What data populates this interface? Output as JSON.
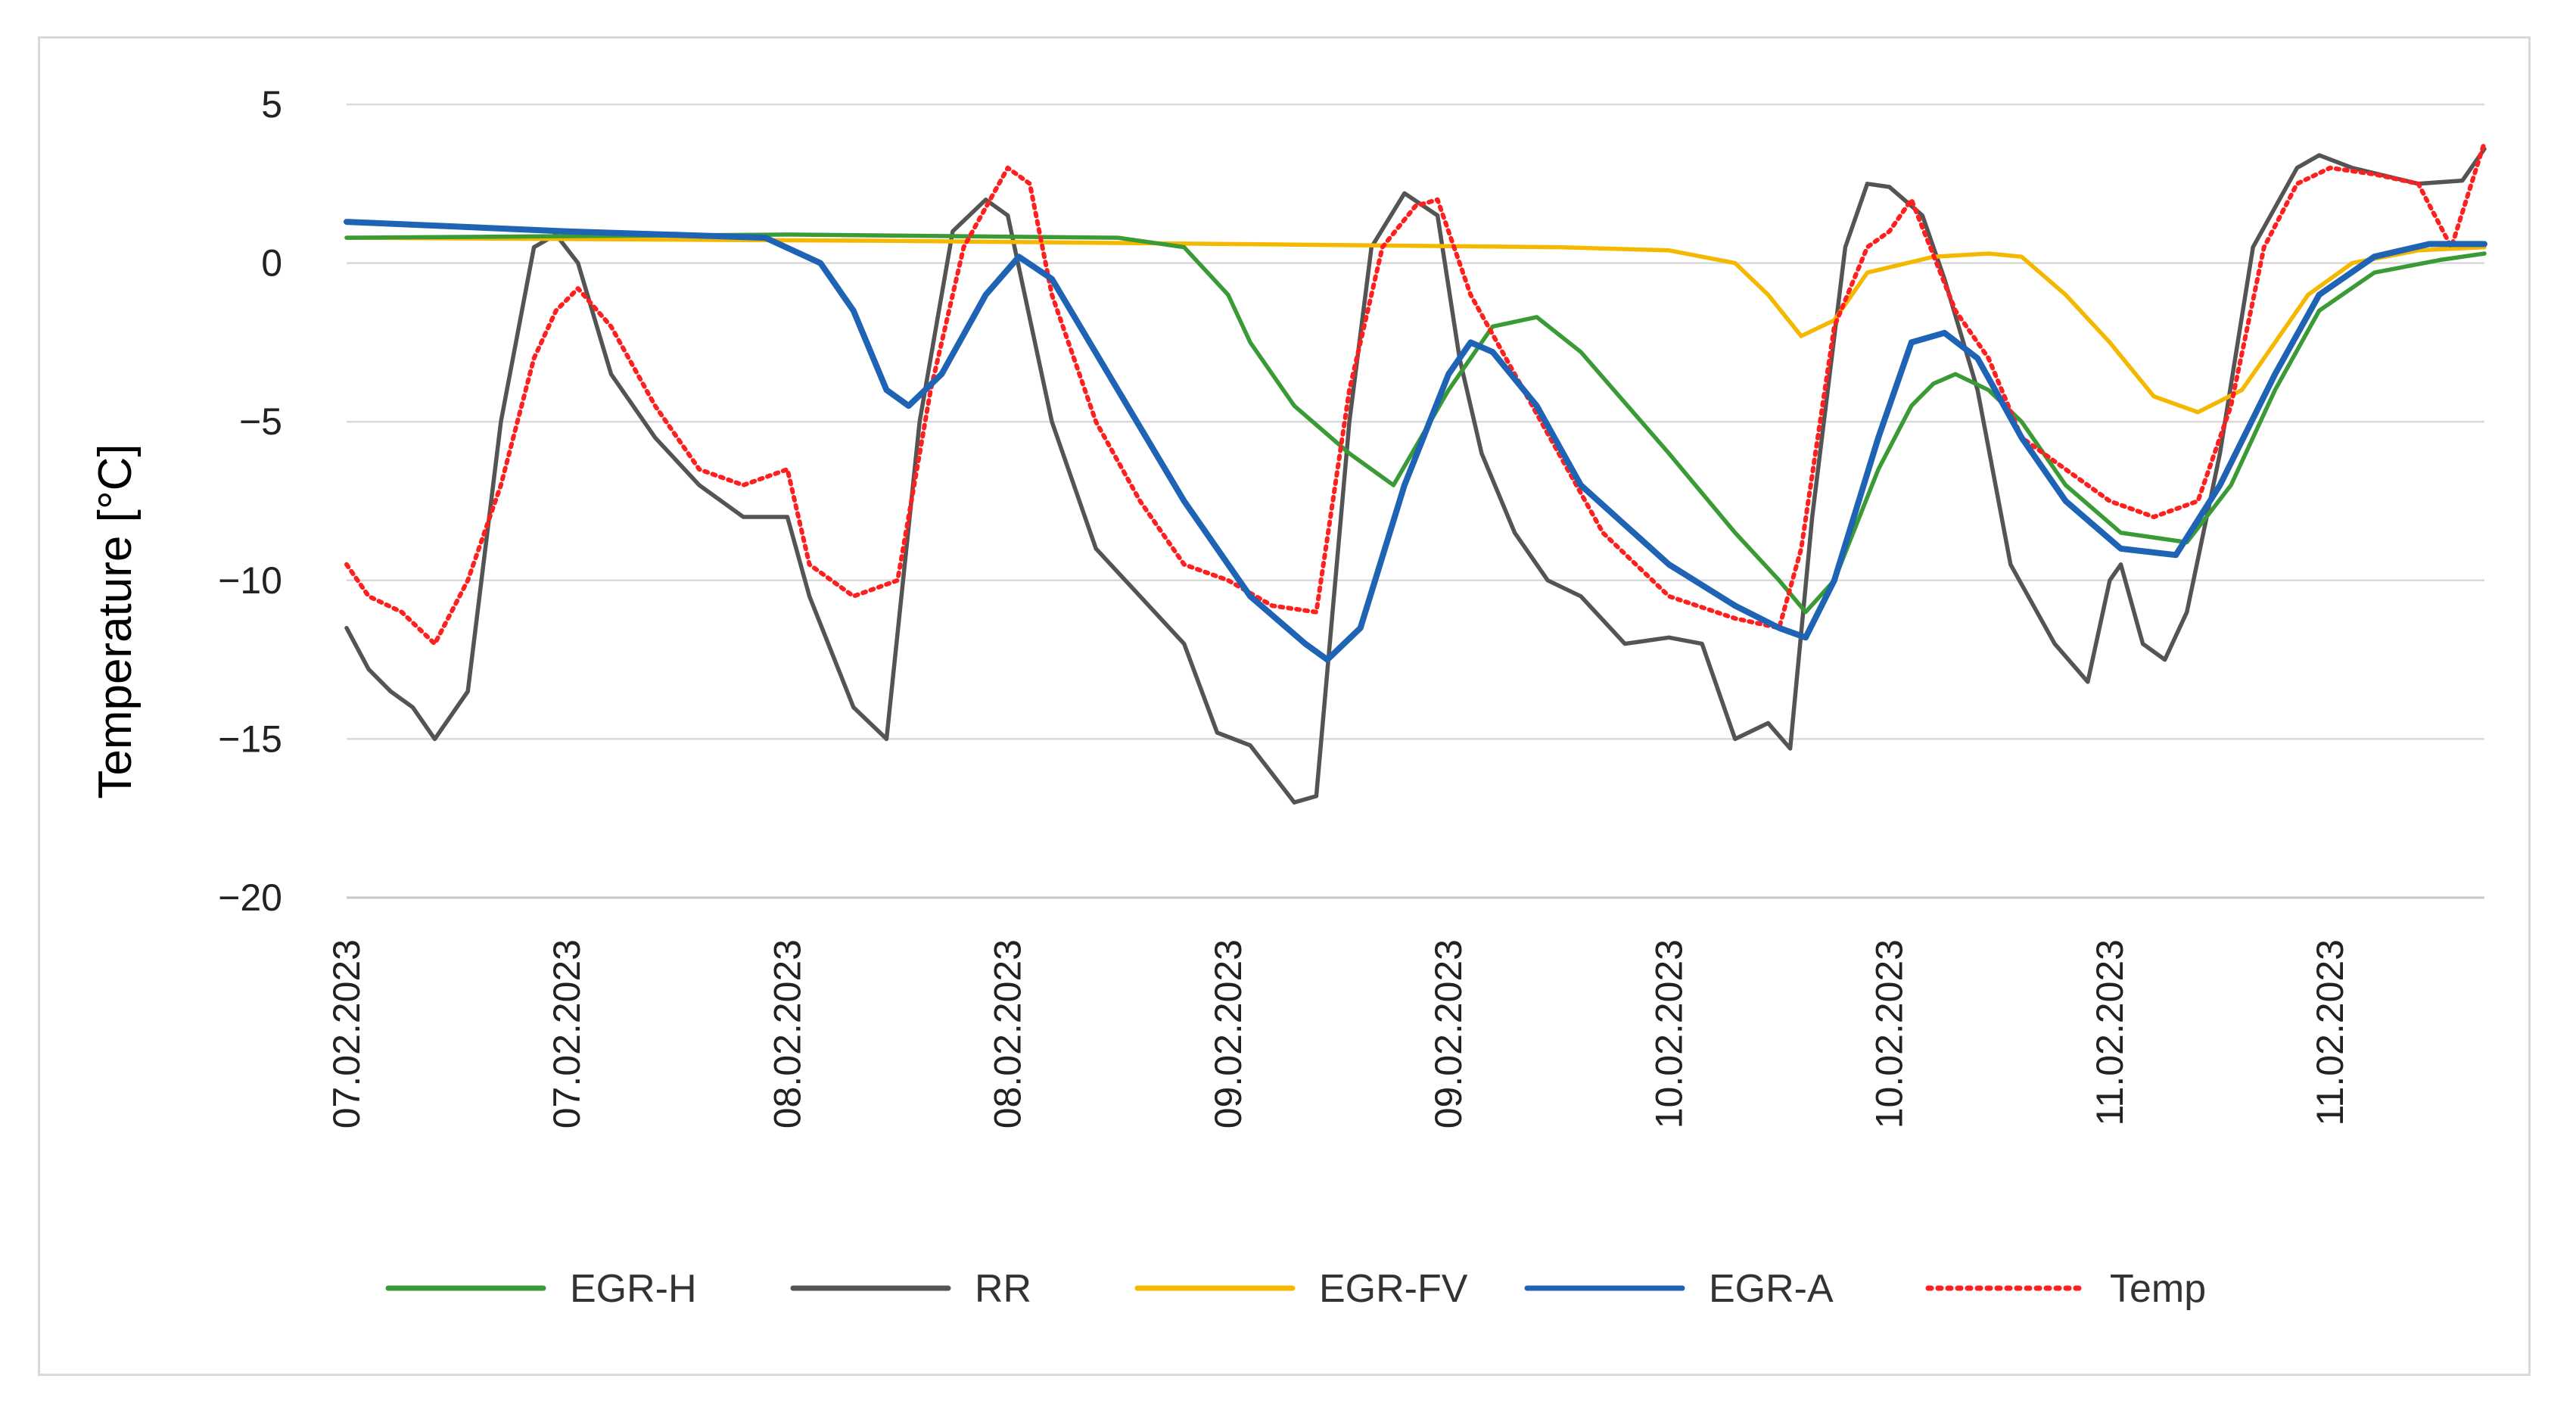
{
  "chart_data": {
    "type": "line",
    "title": "",
    "xlabel": "",
    "ylabel": "Temperature [°C]",
    "ylim": [
      -20,
      5
    ],
    "yticks": [
      5,
      0,
      -5,
      -10,
      -15,
      -20
    ],
    "ytick_labels": [
      "5",
      "0",
      "−5",
      "−10",
      "−15",
      "−20"
    ],
    "xlim": [
      0,
      9.7
    ],
    "x_unit": "half-day intervals from 07.02.2023 00:00",
    "xtick_labels": [
      "07.02.2023",
      "07.02.2023",
      "08.02.2023",
      "08.02.2023",
      "09.02.2023",
      "09.02.2023",
      "10.02.2023",
      "10.02.2023",
      "11.02.2023",
      "11.02.2023"
    ],
    "grid": "horizontal",
    "legend_position": "bottom",
    "series": [
      {
        "name": "EGR-H",
        "color": "#3a9a35",
        "dash": "solid",
        "x": [
          0,
          2.0,
          3.5,
          3.8,
          4.0,
          4.1,
          4.3,
          4.55,
          4.75,
          5.0,
          5.2,
          5.4,
          5.6,
          6.0,
          6.3,
          6.5,
          6.62,
          6.75,
          6.95,
          7.1,
          7.2,
          7.3,
          7.45,
          7.6,
          7.8,
          8.05,
          8.35,
          8.55,
          8.75,
          8.95,
          9.2,
          9.5,
          9.7
        ],
        "y": [
          0.8,
          0.9,
          0.8,
          0.5,
          -1.0,
          -2.5,
          -4.5,
          -6.0,
          -7.0,
          -4.0,
          -2.0,
          -1.7,
          -2.8,
          -6.0,
          -8.5,
          -10.0,
          -11.0,
          -10.0,
          -6.5,
          -4.5,
          -3.8,
          -3.5,
          -4.0,
          -5.0,
          -7.0,
          -8.5,
          -8.8,
          -7.0,
          -4.0,
          -1.5,
          -0.3,
          0.1,
          0.3
        ]
      },
      {
        "name": "RR",
        "color": "#545454",
        "dash": "solid",
        "x": [
          0,
          0.1,
          0.2,
          0.3,
          0.4,
          0.55,
          0.7,
          0.85,
          0.95,
          1.05,
          1.2,
          1.4,
          1.6,
          1.8,
          2.0,
          2.1,
          2.3,
          2.45,
          2.6,
          2.75,
          2.9,
          3.0,
          3.2,
          3.4,
          3.6,
          3.8,
          3.95,
          4.1,
          4.3,
          4.4,
          4.55,
          4.65,
          4.8,
          4.95,
          5.05,
          5.15,
          5.3,
          5.45,
          5.6,
          5.8,
          6.0,
          6.15,
          6.3,
          6.45,
          6.55,
          6.65,
          6.8,
          6.9,
          7.0,
          7.15,
          7.25,
          7.4,
          7.55,
          7.75,
          7.9,
          8.0,
          8.05,
          8.15,
          8.25,
          8.35,
          8.5,
          8.65,
          8.85,
          8.95,
          9.1,
          9.4,
          9.6,
          9.7
        ],
        "y": [
          -11.5,
          -12.8,
          -13.5,
          -14.0,
          -15.0,
          -13.5,
          -5.0,
          0.5,
          0.9,
          0.0,
          -3.5,
          -5.5,
          -7.0,
          -8.0,
          -8.0,
          -10.5,
          -14.0,
          -15.0,
          -5.0,
          1.0,
          2.0,
          1.5,
          -5.0,
          -9.0,
          -10.5,
          -12.0,
          -14.8,
          -15.2,
          -17.0,
          -16.8,
          -5.0,
          0.5,
          2.2,
          1.5,
          -3.0,
          -6.0,
          -8.5,
          -10.0,
          -10.5,
          -12.0,
          -11.8,
          -12.0,
          -15.0,
          -14.5,
          -15.3,
          -8.0,
          0.5,
          2.5,
          2.4,
          1.5,
          -0.5,
          -4.0,
          -9.5,
          -12.0,
          -13.2,
          -10.0,
          -9.5,
          -12.0,
          -12.5,
          -11.0,
          -6.0,
          0.5,
          3.0,
          3.4,
          3.0,
          2.5,
          2.6,
          3.6
        ]
      },
      {
        "name": "EGR-FV",
        "color": "#f5b800",
        "dash": "solid",
        "x": [
          0,
          2.5,
          4.0,
          5.5,
          6.0,
          6.3,
          6.45,
          6.6,
          6.75,
          6.9,
          7.2,
          7.45,
          7.6,
          7.8,
          8.0,
          8.2,
          8.4,
          8.6,
          8.75,
          8.9,
          9.1,
          9.4,
          9.7
        ],
        "y": [
          0.8,
          0.7,
          0.6,
          0.5,
          0.4,
          0.0,
          -1.0,
          -2.3,
          -1.8,
          -0.3,
          0.2,
          0.3,
          0.2,
          -1.0,
          -2.5,
          -4.2,
          -4.7,
          -4.0,
          -2.5,
          -1.0,
          0.0,
          0.4,
          0.5
        ]
      },
      {
        "name": "EGR-A",
        "color": "#1f63b5",
        "dash": "solid",
        "x": [
          0,
          1.0,
          1.9,
          2.15,
          2.3,
          2.45,
          2.55,
          2.7,
          2.9,
          3.05,
          3.2,
          3.5,
          3.8,
          4.1,
          4.35,
          4.45,
          4.6,
          4.8,
          5.0,
          5.1,
          5.2,
          5.4,
          5.6,
          6.0,
          6.3,
          6.5,
          6.62,
          6.75,
          6.95,
          7.1,
          7.25,
          7.4,
          7.6,
          7.8,
          8.05,
          8.3,
          8.5,
          8.75,
          8.95,
          9.2,
          9.45,
          9.7
        ],
        "y": [
          1.3,
          1.0,
          0.8,
          0.0,
          -1.5,
          -4.0,
          -4.5,
          -3.5,
          -1.0,
          0.2,
          -0.5,
          -4.0,
          -7.5,
          -10.5,
          -12.0,
          -12.5,
          -11.5,
          -7.0,
          -3.5,
          -2.5,
          -2.8,
          -4.5,
          -7.0,
          -9.5,
          -10.8,
          -11.5,
          -11.8,
          -10.0,
          -5.5,
          -2.5,
          -2.2,
          -3.0,
          -5.5,
          -7.5,
          -9.0,
          -9.2,
          -7.0,
          -3.5,
          -1.0,
          0.2,
          0.6,
          0.6
        ]
      },
      {
        "name": "Temp",
        "color": "#ff1f1f",
        "dash": "dotted",
        "x": [
          0,
          0.1,
          0.25,
          0.4,
          0.55,
          0.7,
          0.85,
          0.95,
          1.05,
          1.2,
          1.4,
          1.6,
          1.8,
          2.0,
          2.1,
          2.3,
          2.5,
          2.65,
          2.8,
          3.0,
          3.1,
          3.2,
          3.4,
          3.6,
          3.8,
          4.0,
          4.2,
          4.4,
          4.55,
          4.7,
          4.85,
          4.95,
          5.1,
          5.3,
          5.5,
          5.7,
          6.0,
          6.3,
          6.5,
          6.6,
          6.75,
          6.9,
          7.0,
          7.1,
          7.3,
          7.45,
          7.6,
          7.8,
          8.0,
          8.2,
          8.4,
          8.55,
          8.7,
          8.85,
          9.0,
          9.2,
          9.4,
          9.55,
          9.7
        ],
        "y": [
          -9.5,
          -10.5,
          -11.0,
          -12.0,
          -10.0,
          -7.0,
          -3.0,
          -1.5,
          -0.8,
          -2.0,
          -4.5,
          -6.5,
          -7.0,
          -6.5,
          -9.5,
          -10.5,
          -10.0,
          -4.0,
          0.5,
          3.0,
          2.5,
          -1.0,
          -5.0,
          -7.5,
          -9.5,
          -10.0,
          -10.8,
          -11.0,
          -4.0,
          0.5,
          1.8,
          2.0,
          -1.0,
          -3.5,
          -6.0,
          -8.5,
          -10.5,
          -11.2,
          -11.5,
          -9.0,
          -2.0,
          0.5,
          1.0,
          2.0,
          -1.5,
          -3.0,
          -5.5,
          -6.5,
          -7.5,
          -8.0,
          -7.5,
          -4.5,
          0.5,
          2.5,
          3.0,
          2.8,
          2.5,
          0.5,
          3.8
        ]
      }
    ]
  }
}
